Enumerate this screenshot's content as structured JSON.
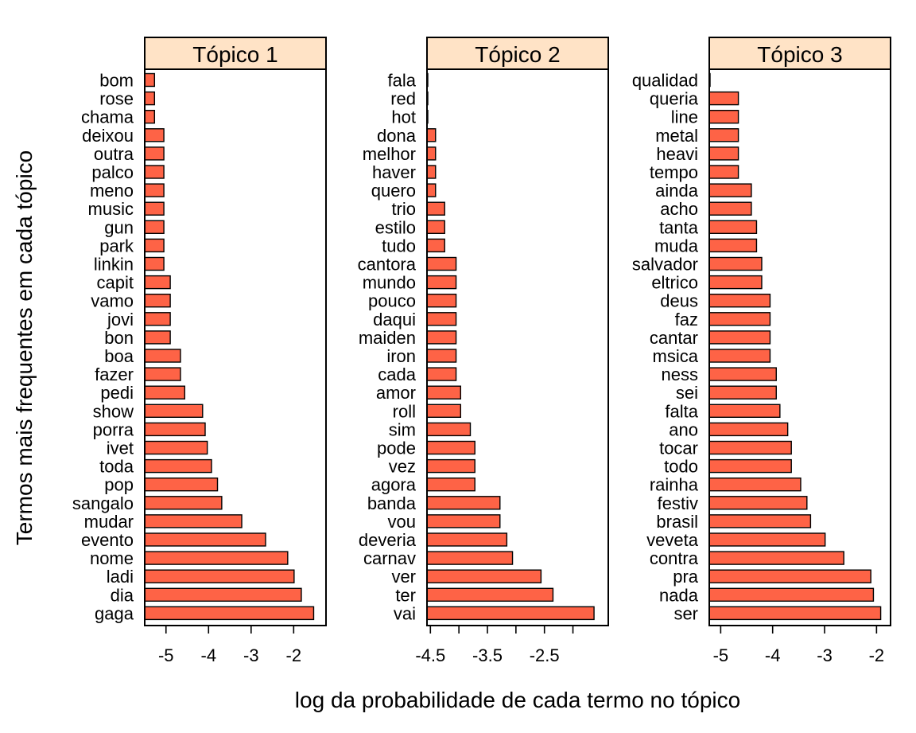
{
  "chart_data": {
    "type": "bar",
    "orientation": "horizontal",
    "xlabel": "log da probabilidade de cada termo no tópico",
    "ylabel": "Termos mais frequentes em cada tópico",
    "colors": {
      "bar": "#fe6346",
      "strip": "#ffe3c6"
    },
    "panels": [
      {
        "title": "Tópico 1",
        "xlim": [
          -5.5,
          -1.24
        ],
        "ticks": [
          -5,
          -4,
          -3,
          -2
        ],
        "tick_labels": [
          "-5",
          "-4",
          "-3",
          "-2"
        ],
        "terms": [
          "bom",
          "rose",
          "chama",
          "deixou",
          "outra",
          "palco",
          "meno",
          "music",
          "gun",
          "park",
          "linkin",
          "capit",
          "vamo",
          "jovi",
          "bon",
          "boa",
          "fazer",
          "pedi",
          "show",
          "porra",
          "ivet",
          "toda",
          "pop",
          "sangalo",
          "mudar",
          "evento",
          "nome",
          "ladi",
          "dia",
          "gaga"
        ],
        "values": [
          -5.27,
          -5.27,
          -5.27,
          -5.05,
          -5.05,
          -5.05,
          -5.05,
          -5.05,
          -5.05,
          -5.05,
          -5.05,
          -4.9,
          -4.9,
          -4.9,
          -4.9,
          -4.66,
          -4.66,
          -4.56,
          -4.14,
          -4.08,
          -4.03,
          -3.93,
          -3.79,
          -3.69,
          -3.22,
          -2.66,
          -2.14,
          -1.99,
          -1.82,
          -1.53
        ]
      },
      {
        "title": "Tópico 2",
        "xlim": [
          -4.56,
          -1.38
        ],
        "ticks": [
          -4.5,
          -4.0,
          -3.5,
          -3.0,
          -2.5,
          -2.0
        ],
        "tick_labels": [
          "-4.5",
          "",
          "-3.5",
          "",
          "-2.5",
          ""
        ],
        "terms": [
          "fala",
          "red",
          "hot",
          "dona",
          "melhor",
          "haver",
          "quero",
          "trio",
          "estilo",
          "tudo",
          "cantora",
          "mundo",
          "pouco",
          "daqui",
          "maiden",
          "iron",
          "cada",
          "amor",
          "roll",
          "sim",
          "pode",
          "vez",
          "agora",
          "banda",
          "vou",
          "deveria",
          "carnav",
          "ver",
          "ter",
          "vai"
        ],
        "values": [
          -4.57,
          -4.57,
          -4.57,
          -4.41,
          -4.41,
          -4.41,
          -4.41,
          -4.25,
          -4.25,
          -4.25,
          -4.05,
          -4.05,
          -4.05,
          -4.05,
          -4.05,
          -4.05,
          -4.05,
          -3.97,
          -3.97,
          -3.8,
          -3.72,
          -3.72,
          -3.72,
          -3.28,
          -3.28,
          -3.16,
          -3.06,
          -2.56,
          -2.35,
          -1.63
        ]
      },
      {
        "title": "Tópico 3",
        "xlim": [
          -5.22,
          -1.73
        ],
        "ticks": [
          -5,
          -4,
          -3,
          -2
        ],
        "tick_labels": [
          "-5",
          "-4",
          "-3",
          "-2"
        ],
        "terms": [
          "qualidad",
          "queria",
          "line",
          "metal",
          "heavi",
          "tempo",
          "ainda",
          "acho",
          "tanta",
          "muda",
          "salvador",
          "eltrico",
          "deus",
          "faz",
          "cantar",
          "msica",
          "ness",
          "sei",
          "falta",
          "ano",
          "tocar",
          "todo",
          "rainha",
          "festiv",
          "brasil",
          "veveta",
          "contra",
          "pra",
          "nada",
          "ser"
        ],
        "values": [
          -5.22,
          -4.66,
          -4.66,
          -4.66,
          -4.66,
          -4.66,
          -4.41,
          -4.41,
          -4.31,
          -4.31,
          -4.21,
          -4.21,
          -4.05,
          -4.05,
          -4.05,
          -4.05,
          -3.93,
          -3.93,
          -3.86,
          -3.71,
          -3.64,
          -3.64,
          -3.46,
          -3.34,
          -3.27,
          -2.99,
          -2.63,
          -2.11,
          -2.06,
          -1.92
        ]
      }
    ]
  }
}
